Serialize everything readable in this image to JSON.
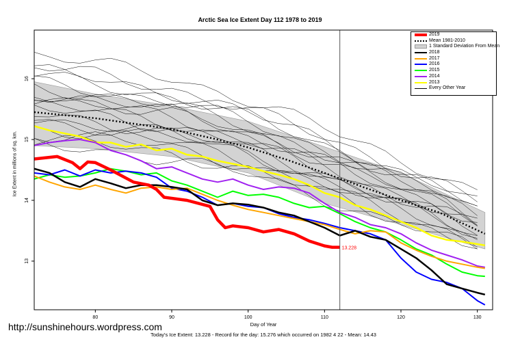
{
  "chart_data": {
    "type": "line",
    "title": "Arctic Sea Ice Extent Day 112 1978 to 2019",
    "xlabel": "Day of Year",
    "ylabel": "Ice Extent in millions of sq. km.",
    "xlim": [
      72,
      132
    ],
    "ylim": [
      12.2,
      16.8
    ],
    "xticks": [
      80,
      90,
      100,
      110,
      120,
      130
    ],
    "yticks": [
      13,
      14,
      15,
      16
    ],
    "current_day": 112,
    "end_annotation": "13.228",
    "subtitle": "Today's Ice Extent: 13.228  - Record for the day: 15.276 which occurred on 1982 4 22  - Mean: 14.43",
    "legend": {
      "placement": "top-right",
      "entries": [
        {
          "label": "2019",
          "color": "#ff0000",
          "style": "thick"
        },
        {
          "label": "Mean 1981-2010",
          "color": "#000000",
          "style": "dotted"
        },
        {
          "label": "1 Standard Deviation From Mean",
          "color": "#d3d3d3",
          "style": "band"
        },
        {
          "label": "2018",
          "color": "#000000",
          "style": "solid"
        },
        {
          "label": "2017",
          "color": "#ffa500",
          "style": "solid"
        },
        {
          "label": "2016",
          "color": "#0000ff",
          "style": "solid"
        },
        {
          "label": "2015",
          "color": "#00ff00",
          "style": "solid"
        },
        {
          "label": "2014",
          "color": "#a020f0",
          "style": "solid"
        },
        {
          "label": "2013",
          "color": "#ffff00",
          "style": "solid"
        },
        {
          "label": "Every Other Year",
          "color": "#000000",
          "style": "thin"
        }
      ]
    },
    "mean_series": {
      "name": "Mean 1981-2010",
      "points": [
        [
          72,
          15.45
        ],
        [
          80,
          15.35
        ],
        [
          90,
          15.17
        ],
        [
          96,
          15.0
        ],
        [
          100,
          14.87
        ],
        [
          105,
          14.67
        ],
        [
          110,
          14.45
        ],
        [
          115,
          14.22
        ],
        [
          120,
          14.0
        ],
        [
          125,
          13.8
        ],
        [
          131,
          13.45
        ]
      ]
    },
    "std_band": {
      "upper": [
        [
          72,
          15.95
        ],
        [
          80,
          15.75
        ],
        [
          90,
          15.55
        ],
        [
          100,
          15.3
        ],
        [
          110,
          14.88
        ],
        [
          120,
          14.45
        ],
        [
          131,
          13.8
        ]
      ],
      "lower": [
        [
          72,
          14.9
        ],
        [
          80,
          14.85
        ],
        [
          90,
          14.72
        ],
        [
          100,
          14.45
        ],
        [
          110,
          13.95
        ],
        [
          120,
          13.6
        ],
        [
          131,
          13.2
        ]
      ]
    },
    "series": [
      {
        "name": "2019",
        "color": "#ff0000",
        "width": 4.5,
        "points": [
          [
            72,
            14.68
          ],
          [
            75,
            14.72
          ],
          [
            77,
            14.62
          ],
          [
            78,
            14.52
          ],
          [
            79,
            14.63
          ],
          [
            80,
            14.62
          ],
          [
            82,
            14.5
          ],
          [
            85,
            14.3
          ],
          [
            87,
            14.25
          ],
          [
            88,
            14.18
          ],
          [
            89,
            14.05
          ],
          [
            92,
            14.0
          ],
          [
            95,
            13.9
          ],
          [
            96,
            13.68
          ],
          [
            97,
            13.55
          ],
          [
            98,
            13.58
          ],
          [
            100,
            13.55
          ],
          [
            102,
            13.48
          ],
          [
            104,
            13.52
          ],
          [
            106,
            13.45
          ],
          [
            108,
            13.33
          ],
          [
            110,
            13.25
          ],
          [
            111,
            13.228
          ],
          [
            112,
            13.228
          ]
        ]
      },
      {
        "name": "2018",
        "color": "#000000",
        "width": 2.5,
        "points": [
          [
            72,
            14.52
          ],
          [
            74,
            14.45
          ],
          [
            76,
            14.3
          ],
          [
            78,
            14.22
          ],
          [
            80,
            14.35
          ],
          [
            82,
            14.28
          ],
          [
            84,
            14.2
          ],
          [
            86,
            14.25
          ],
          [
            88,
            14.25
          ],
          [
            90,
            14.22
          ],
          [
            92,
            14.18
          ],
          [
            94,
            14.0
          ],
          [
            96,
            13.92
          ],
          [
            98,
            13.95
          ],
          [
            100,
            13.93
          ],
          [
            102,
            13.88
          ],
          [
            104,
            13.8
          ],
          [
            106,
            13.75
          ],
          [
            108,
            13.65
          ],
          [
            110,
            13.55
          ],
          [
            112,
            13.42
          ],
          [
            114,
            13.5
          ],
          [
            116,
            13.4
          ],
          [
            118,
            13.35
          ],
          [
            120,
            13.2
          ],
          [
            122,
            13.05
          ],
          [
            124,
            12.85
          ],
          [
            126,
            12.62
          ],
          [
            128,
            12.55
          ],
          [
            130,
            12.48
          ],
          [
            131,
            12.45
          ]
        ]
      },
      {
        "name": "2017",
        "color": "#ffa500",
        "width": 2,
        "points": [
          [
            72,
            14.4
          ],
          [
            74,
            14.3
          ],
          [
            76,
            14.22
          ],
          [
            78,
            14.18
          ],
          [
            80,
            14.25
          ],
          [
            82,
            14.18
          ],
          [
            84,
            14.12
          ],
          [
            86,
            14.2
          ],
          [
            88,
            14.22
          ],
          [
            90,
            14.18
          ],
          [
            92,
            14.2
          ],
          [
            94,
            14.1
          ],
          [
            96,
            14.0
          ],
          [
            98,
            13.92
          ],
          [
            100,
            13.85
          ],
          [
            102,
            13.8
          ],
          [
            104,
            13.75
          ],
          [
            106,
            13.7
          ],
          [
            108,
            13.65
          ],
          [
            110,
            13.6
          ],
          [
            112,
            13.52
          ],
          [
            114,
            13.45
          ],
          [
            116,
            13.5
          ],
          [
            118,
            13.48
          ],
          [
            120,
            13.3
          ],
          [
            122,
            13.18
          ],
          [
            124,
            13.08
          ],
          [
            126,
            13.0
          ],
          [
            128,
            12.95
          ],
          [
            130,
            12.9
          ],
          [
            131,
            12.88
          ]
        ]
      },
      {
        "name": "2016",
        "color": "#0000ff",
        "width": 2,
        "points": [
          [
            72,
            14.45
          ],
          [
            74,
            14.42
          ],
          [
            76,
            14.5
          ],
          [
            78,
            14.4
          ],
          [
            80,
            14.5
          ],
          [
            82,
            14.45
          ],
          [
            84,
            14.48
          ],
          [
            86,
            14.45
          ],
          [
            88,
            14.38
          ],
          [
            90,
            14.2
          ],
          [
            92,
            14.15
          ],
          [
            94,
            14.05
          ],
          [
            96,
            13.92
          ],
          [
            98,
            13.95
          ],
          [
            100,
            13.9
          ],
          [
            102,
            13.88
          ],
          [
            104,
            13.78
          ],
          [
            106,
            13.72
          ],
          [
            108,
            13.68
          ],
          [
            110,
            13.62
          ],
          [
            112,
            13.55
          ],
          [
            114,
            13.5
          ],
          [
            116,
            13.45
          ],
          [
            118,
            13.35
          ],
          [
            120,
            13.05
          ],
          [
            122,
            12.82
          ],
          [
            124,
            12.7
          ],
          [
            126,
            12.65
          ],
          [
            128,
            12.55
          ],
          [
            130,
            12.35
          ],
          [
            131,
            12.28
          ]
        ]
      },
      {
        "name": "2015",
        "color": "#00ff00",
        "width": 2,
        "points": [
          [
            72,
            14.35
          ],
          [
            74,
            14.42
          ],
          [
            76,
            14.38
          ],
          [
            78,
            14.4
          ],
          [
            80,
            14.45
          ],
          [
            82,
            14.52
          ],
          [
            84,
            14.48
          ],
          [
            86,
            14.42
          ],
          [
            88,
            14.45
          ],
          [
            90,
            14.32
          ],
          [
            92,
            14.25
          ],
          [
            94,
            14.15
          ],
          [
            96,
            14.05
          ],
          [
            98,
            14.15
          ],
          [
            100,
            14.08
          ],
          [
            102,
            14.1
          ],
          [
            104,
            14.05
          ],
          [
            106,
            13.95
          ],
          [
            108,
            13.88
          ],
          [
            110,
            13.9
          ],
          [
            112,
            13.78
          ],
          [
            114,
            13.65
          ],
          [
            116,
            13.55
          ],
          [
            118,
            13.48
          ],
          [
            120,
            13.35
          ],
          [
            122,
            13.2
          ],
          [
            124,
            13.1
          ],
          [
            126,
            12.95
          ],
          [
            128,
            12.82
          ],
          [
            130,
            12.76
          ],
          [
            131,
            12.75
          ]
        ]
      },
      {
        "name": "2014",
        "color": "#a020f0",
        "width": 2,
        "points": [
          [
            72,
            14.9
          ],
          [
            74,
            14.95
          ],
          [
            76,
            14.98
          ],
          [
            78,
            15.0
          ],
          [
            80,
            14.95
          ],
          [
            82,
            14.82
          ],
          [
            84,
            14.75
          ],
          [
            86,
            14.65
          ],
          [
            88,
            14.52
          ],
          [
            90,
            14.55
          ],
          [
            92,
            14.45
          ],
          [
            94,
            14.35
          ],
          [
            96,
            14.3
          ],
          [
            98,
            14.35
          ],
          [
            100,
            14.25
          ],
          [
            102,
            14.18
          ],
          [
            104,
            14.22
          ],
          [
            106,
            14.2
          ],
          [
            108,
            14.12
          ],
          [
            110,
            13.95
          ],
          [
            112,
            13.8
          ],
          [
            114,
            13.72
          ],
          [
            116,
            13.6
          ],
          [
            118,
            13.55
          ],
          [
            120,
            13.45
          ],
          [
            122,
            13.3
          ],
          [
            124,
            13.18
          ],
          [
            126,
            13.1
          ],
          [
            128,
            13.02
          ],
          [
            130,
            12.92
          ],
          [
            131,
            12.9
          ]
        ]
      },
      {
        "name": "2013",
        "color": "#ffff00",
        "width": 2.5,
        "points": [
          [
            72,
            15.22
          ],
          [
            74,
            15.15
          ],
          [
            76,
            15.1
          ],
          [
            78,
            15.05
          ],
          [
            80,
            14.95
          ],
          [
            82,
            14.95
          ],
          [
            84,
            14.88
          ],
          [
            86,
            14.92
          ],
          [
            88,
            14.82
          ],
          [
            90,
            14.85
          ],
          [
            92,
            14.75
          ],
          [
            94,
            14.72
          ],
          [
            96,
            14.65
          ],
          [
            98,
            14.6
          ],
          [
            100,
            14.55
          ],
          [
            102,
            14.48
          ],
          [
            104,
            14.42
          ],
          [
            106,
            14.35
          ],
          [
            108,
            14.25
          ],
          [
            110,
            14.12
          ],
          [
            112,
            14.05
          ],
          [
            114,
            13.92
          ],
          [
            116,
            13.85
          ],
          [
            118,
            13.75
          ],
          [
            120,
            13.65
          ],
          [
            122,
            13.55
          ],
          [
            124,
            13.42
          ],
          [
            126,
            13.35
          ],
          [
            128,
            13.32
          ],
          [
            130,
            13.28
          ],
          [
            131,
            13.26
          ]
        ]
      }
    ]
  },
  "watermark": "http://sunshinehours.wordpress.com"
}
